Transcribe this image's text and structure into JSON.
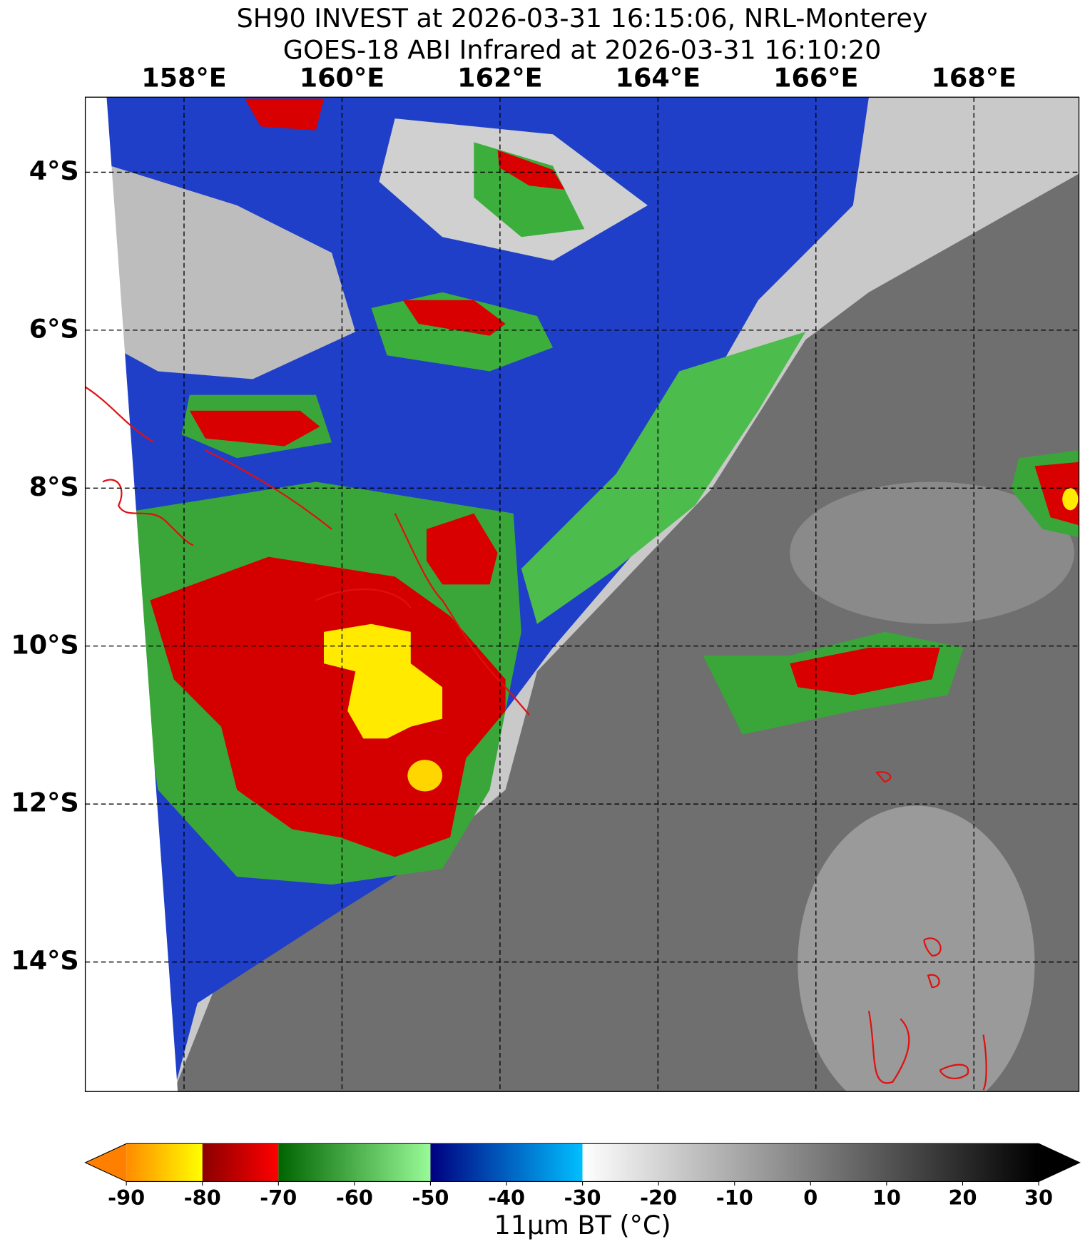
{
  "chart_data": {
    "type": "satellite-map",
    "title": "SH90 INVEST at 2026-03-31 16:15:06, NRL-Monterey",
    "subtitle": "GOES-18 ABI Infrared at 2026-03-31 16:10:20",
    "xlim": [
      156.75,
      169.33
    ],
    "ylim": [
      -15.64,
      -3.05
    ],
    "xticks": [
      {
        "value": 158,
        "label": "158°E"
      },
      {
        "value": 160,
        "label": "160°E"
      },
      {
        "value": 162,
        "label": "162°E"
      },
      {
        "value": 164,
        "label": "164°E"
      },
      {
        "value": 166,
        "label": "166°E"
      },
      {
        "value": 168,
        "label": "168°E"
      }
    ],
    "yticks": [
      {
        "value": -4,
        "label": "4°S"
      },
      {
        "value": -6,
        "label": "6°S"
      },
      {
        "value": -8,
        "label": "8°S"
      },
      {
        "value": -10,
        "label": "10°S"
      },
      {
        "value": -12,
        "label": "12°S"
      },
      {
        "value": -14,
        "label": "14°S"
      }
    ],
    "grid": true,
    "colorbar": {
      "label": "11μm BT (°C)",
      "lim": [
        -90,
        30
      ],
      "ticks": [
        -90,
        -80,
        -70,
        -60,
        -50,
        -40,
        -30,
        -20,
        -10,
        0,
        10,
        20,
        30
      ],
      "under_color": "#ff8000",
      "over_color": "#000000",
      "segments": [
        {
          "bounds": [
            -90,
            -80
          ],
          "colors": [
            "#ff8c00",
            "#ffff00"
          ]
        },
        {
          "bounds": [
            -80,
            -70
          ],
          "colors": [
            "#8b0000",
            "#ff0000"
          ]
        },
        {
          "bounds": [
            -70,
            -50
          ],
          "colors": [
            "#006400",
            "#98fb98"
          ]
        },
        {
          "bounds": [
            -50,
            -30
          ],
          "colors": [
            "#00007f",
            "#00bfff"
          ]
        },
        {
          "bounds": [
            -30,
            30
          ],
          "colors": [
            "#ffffff",
            "#000000"
          ]
        }
      ]
    }
  }
}
